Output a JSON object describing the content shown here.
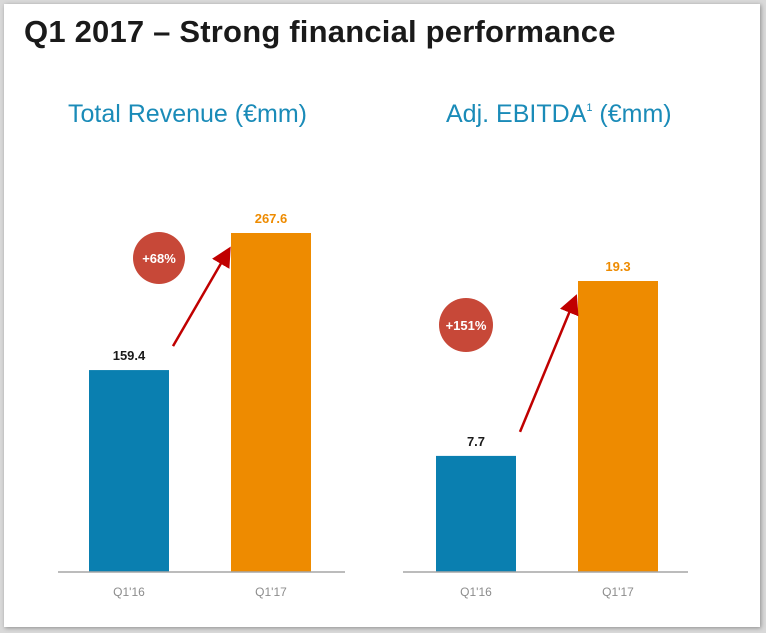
{
  "title": "Q1 2017 – Strong financial performance",
  "colors": {
    "base_bar": "#0a7fb0",
    "current_bar": "#ee8b00",
    "title_blue": "#1a8bb8",
    "badge": "#c74838",
    "arrow": "#c00000",
    "axis": "#a6a6a6"
  },
  "chart_data": [
    {
      "type": "bar",
      "title": "Total Revenue (€mm)",
      "categories": [
        "Q1'16",
        "Q1'17"
      ],
      "values": [
        159.4,
        267.6
      ],
      "value_labels": [
        "159.4",
        "267.6"
      ],
      "growth_label": "+68%",
      "ylim": [
        0,
        267.6
      ],
      "xlabel": "",
      "ylabel": ""
    },
    {
      "type": "bar",
      "title_main": "Adj. EBITDA",
      "title_footnote": "1",
      "title_unit": "(€mm)",
      "categories": [
        "Q1'16",
        "Q1'17"
      ],
      "values": [
        7.7,
        19.3
      ],
      "value_labels": [
        "7.7",
        "19.3"
      ],
      "growth_label": "+151%",
      "ylim": [
        0,
        19.3
      ],
      "xlabel": "",
      "ylabel": ""
    }
  ]
}
